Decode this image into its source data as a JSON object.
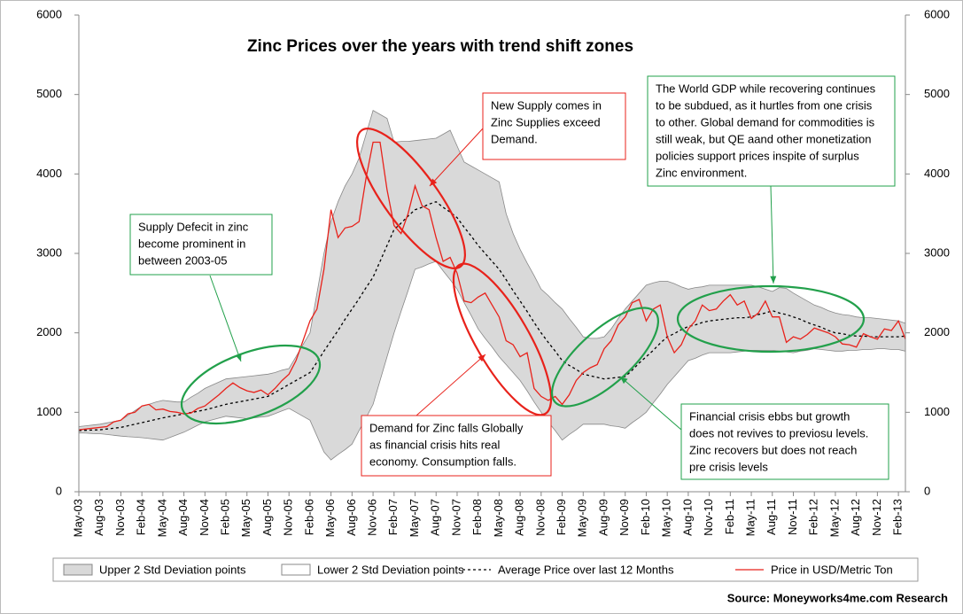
{
  "chart_data": {
    "type": "line",
    "title": "Zinc Prices over the years with trend shift zones",
    "source": "Source: Moneyworks4me.com Research",
    "categories": [
      "May-03",
      null,
      null,
      "Aug-03",
      null,
      null,
      "Nov-03",
      null,
      null,
      "Feb-04",
      null,
      null,
      "May-04",
      null,
      null,
      "Aug-04",
      null,
      null,
      "Nov-04",
      null,
      null,
      "Feb-05",
      null,
      null,
      "May-05",
      null,
      null,
      "Aug-05",
      null,
      null,
      "Nov-05",
      null,
      null,
      "Feb-06",
      null,
      null,
      "May-06",
      null,
      null,
      "Aug-06",
      null,
      null,
      "Nov-06",
      null,
      null,
      "Feb-07",
      null,
      null,
      "May-07",
      null,
      null,
      "Aug-07",
      null,
      null,
      "Nov-07",
      null,
      null,
      "Feb-08",
      null,
      null,
      "May-08",
      null,
      null,
      "Aug-08",
      null,
      null,
      "Nov-08",
      null,
      null,
      "Feb-09",
      null,
      null,
      "May-09",
      null,
      null,
      "Aug-09",
      null,
      null,
      "Nov-09",
      null,
      null,
      "Feb-10",
      null,
      null,
      "May-10",
      null,
      null,
      "Aug-10",
      null,
      null,
      "Nov-10",
      null,
      null,
      "Feb-11",
      null,
      null,
      "May-11",
      null,
      null,
      "Aug-11",
      null,
      null,
      "Nov-11",
      null,
      null,
      "Feb-12",
      null,
      null,
      "May-12",
      null,
      null,
      "Aug-12",
      null,
      null,
      "Nov-12",
      null,
      null,
      "Feb-13",
      null
    ],
    "series": [
      {
        "name": "Upper 2 Std Deviation points",
        "color": "#d9d9d9",
        "values": [
          820,
          830,
          840,
          850,
          867,
          883,
          900,
          960,
          1020,
          1080,
          1100,
          1130,
          1150,
          1140,
          1130,
          1130,
          1190,
          1240,
          1300,
          1340,
          1380,
          1420,
          1430,
          1440,
          1450,
          1460,
          1470,
          1480,
          1500,
          1530,
          1550,
          1700,
          1850,
          2000,
          2500,
          3000,
          3400,
          3650,
          3850,
          4000,
          4200,
          4500,
          4800,
          4750,
          4700,
          4400,
          4410,
          4410,
          4420,
          4430,
          4440,
          4450,
          4500,
          4550,
          4350,
          4150,
          4100,
          4050,
          4000,
          3950,
          3900,
          3500,
          3250,
          3050,
          2880,
          2720,
          2550,
          2470,
          2380,
          2300,
          2180,
          2070,
          1950,
          1930,
          1930,
          1950,
          2050,
          2180,
          2300,
          2400,
          2500,
          2600,
          2630,
          2650,
          2650,
          2620,
          2580,
          2550,
          2570,
          2580,
          2600,
          2600,
          2600,
          2600,
          2600,
          2600,
          2600,
          2580,
          2550,
          2520,
          2570,
          2560,
          2500,
          2450,
          2400,
          2350,
          2320,
          2280,
          2250,
          2230,
          2220,
          2200,
          2190,
          2190,
          2180,
          2170,
          2160,
          2150,
          2120
        ]
      },
      {
        "name": "Lower 2 Std Deviation points",
        "color": "#ffffff",
        "values": [
          740,
          737,
          733,
          730,
          720,
          710,
          700,
          693,
          687,
          680,
          670,
          660,
          650,
          683,
          717,
          750,
          793,
          837,
          880,
          903,
          927,
          950,
          940,
          930,
          920,
          930,
          940,
          950,
          983,
          1017,
          1050,
          1000,
          950,
          900,
          700,
          500,
          400,
          470,
          530,
          600,
          770,
          930,
          1100,
          1400,
          1700,
          2000,
          2270,
          2530,
          2800,
          2830,
          2870,
          2900,
          2780,
          2670,
          2550,
          2380,
          2220,
          2050,
          1930,
          1820,
          1700,
          1600,
          1500,
          1400,
          1270,
          1130,
          1000,
          880,
          770,
          650,
          720,
          780,
          850,
          850,
          850,
          850,
          830,
          820,
          800,
          870,
          930,
          1000,
          1120,
          1230,
          1350,
          1450,
          1550,
          1650,
          1680,
          1720,
          1750,
          1750,
          1750,
          1750,
          1760,
          1770,
          1780,
          1780,
          1780,
          1780,
          1770,
          1760,
          1750,
          1770,
          1780,
          1800,
          1790,
          1780,
          1770,
          1770,
          1780,
          1780,
          1790,
          1790,
          1800,
          1800,
          1790,
          1790,
          1770
        ]
      },
      {
        "name": "Average Price over last 12 Months",
        "color": "#000000",
        "values": [
          770,
          773,
          777,
          780,
          790,
          800,
          810,
          830,
          850,
          870,
          890,
          910,
          930,
          947,
          963,
          980,
          997,
          1013,
          1030,
          1053,
          1077,
          1100,
          1117,
          1133,
          1150,
          1167,
          1183,
          1200,
          1250,
          1300,
          1350,
          1400,
          1450,
          1500,
          1630,
          1770,
          1900,
          2030,
          2170,
          2300,
          2430,
          2570,
          2700,
          2900,
          3100,
          3300,
          3380,
          3470,
          3550,
          3580,
          3620,
          3650,
          3580,
          3520,
          3450,
          3330,
          3220,
          3100,
          3000,
          2900,
          2800,
          2670,
          2530,
          2400,
          2270,
          2130,
          2000,
          1880,
          1770,
          1650,
          1590,
          1540,
          1480,
          1460,
          1440,
          1420,
          1430,
          1440,
          1450,
          1530,
          1620,
          1700,
          1780,
          1870,
          1950,
          1990,
          2040,
          2080,
          2100,
          2130,
          2150,
          2160,
          2170,
          2180,
          2190,
          2190,
          2200,
          2230,
          2250,
          2280,
          2250,
          2230,
          2200,
          2170,
          2130,
          2100,
          2070,
          2030,
          2000,
          1990,
          1970,
          1960,
          1960,
          1950,
          1950,
          1950,
          1950,
          1950,
          1960
        ]
      },
      {
        "name": "Price in USD/Metric Ton",
        "color": "#e8221b",
        "values": [
          780,
          790,
          800,
          810,
          820,
          880,
          900,
          980,
          1000,
          1080,
          1100,
          1030,
          1040,
          1010,
          1000,
          980,
          990,
          1050,
          1080,
          1150,
          1220,
          1300,
          1370,
          1310,
          1270,
          1250,
          1280,
          1220,
          1300,
          1400,
          1480,
          1650,
          1900,
          2150,
          2300,
          2800,
          3550,
          3200,
          3320,
          3340,
          3400,
          3950,
          4400,
          4400,
          3800,
          3350,
          3250,
          3500,
          3850,
          3600,
          3550,
          3200,
          2900,
          2950,
          2750,
          2400,
          2380,
          2450,
          2500,
          2350,
          2200,
          1900,
          1850,
          1700,
          1750,
          1300,
          1200,
          1150,
          1200,
          1100,
          1220,
          1400,
          1500,
          1560,
          1600,
          1800,
          1900,
          2100,
          2200,
          2380,
          2420,
          2150,
          2300,
          2350,
          1950,
          1750,
          1850,
          2050,
          2150,
          2350,
          2280,
          2300,
          2400,
          2480,
          2350,
          2400,
          2180,
          2250,
          2400,
          2200,
          2200,
          1880,
          1950,
          1920,
          1980,
          2060,
          2030,
          2000,
          1950,
          1860,
          1850,
          1820,
          1990,
          1950,
          1920,
          2050,
          2030,
          2150,
          1920
        ]
      }
    ],
    "ylim": [
      0,
      6000
    ],
    "yticks": [
      0,
      1000,
      2000,
      3000,
      4000,
      5000,
      6000
    ],
    "y2lim": [
      0,
      6000
    ],
    "y2ticks": [
      0,
      1000,
      2000,
      3000,
      4000,
      5000,
      6000
    ],
    "legend": "bottom",
    "annotations": [
      {
        "lines": [
          "Supply Defecit in zinc",
          "become prominent in",
          "between 2003-05"
        ],
        "color": "#22a04b"
      },
      {
        "lines": [
          "New Supply comes in",
          "Zinc Supplies exceed",
          "Demand."
        ],
        "color": "#e8221b"
      },
      {
        "lines": [
          "Demand for Zinc falls Globally",
          "as financial crisis hits real",
          "economy. Consumption falls."
        ],
        "color": "#e8221b"
      },
      {
        "lines": [
          "Financial crisis ebbs but growth",
          "does not revives to previosu levels.",
          "Zinc recovers but does not reach",
          "pre crisis levels"
        ],
        "color": "#22a04b"
      },
      {
        "lines": [
          "The World GDP while recovering continues",
          "to be subdued, as it hurtles from one crisis",
          "to other. Global demand for commodities is",
          "still weak, but QE aand other monetization",
          "policies support prices inspite of surplus",
          "Zinc environment."
        ],
        "color": "#22a04b"
      }
    ]
  }
}
